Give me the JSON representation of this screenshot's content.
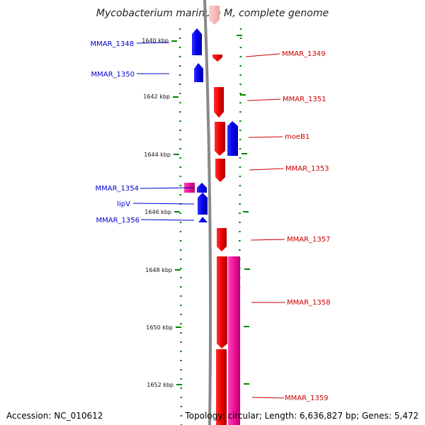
{
  "title": "Mycobacterium marinum M, complete genome",
  "footer": {
    "accession": "Accession: NC_010612",
    "topology": "Topology: circular; Length: 6,636,827 bp; Genes: 5,472"
  },
  "colors": {
    "reverse_strand": "#0000ee",
    "forward_strand": "#ee0000",
    "rna_gene": "#ee1199",
    "faded_gene": "#f5b8b8",
    "backbone": "#888888",
    "ticks": "#008800"
  },
  "kbp_ticks": [
    "1640 kbp",
    "1642 kbp",
    "1644 kbp",
    "1646 kbp",
    "1648 kbp",
    "1650 kbp",
    "1652 kbp"
  ],
  "genes": [
    {
      "label": "MMAR_1348",
      "strand": "reverse"
    },
    {
      "label": "MMAR_1350",
      "strand": "reverse"
    },
    {
      "label": "MMAR_1354",
      "strand": "rna"
    },
    {
      "label": "lipV",
      "strand": "reverse"
    },
    {
      "label": "MMAR_1356",
      "strand": "reverse"
    },
    {
      "label": "MMAR_1349",
      "strand": "forward"
    },
    {
      "label": "MMAR_1351",
      "strand": "forward"
    },
    {
      "label": "moeB1",
      "strand": "reverse"
    },
    {
      "label": "MMAR_1353",
      "strand": "forward"
    },
    {
      "label": "MMAR_1357",
      "strand": "forward"
    },
    {
      "label": "MMAR_1358",
      "strand": "forward"
    },
    {
      "label": "MMAR_1359",
      "strand": "rna"
    }
  ]
}
